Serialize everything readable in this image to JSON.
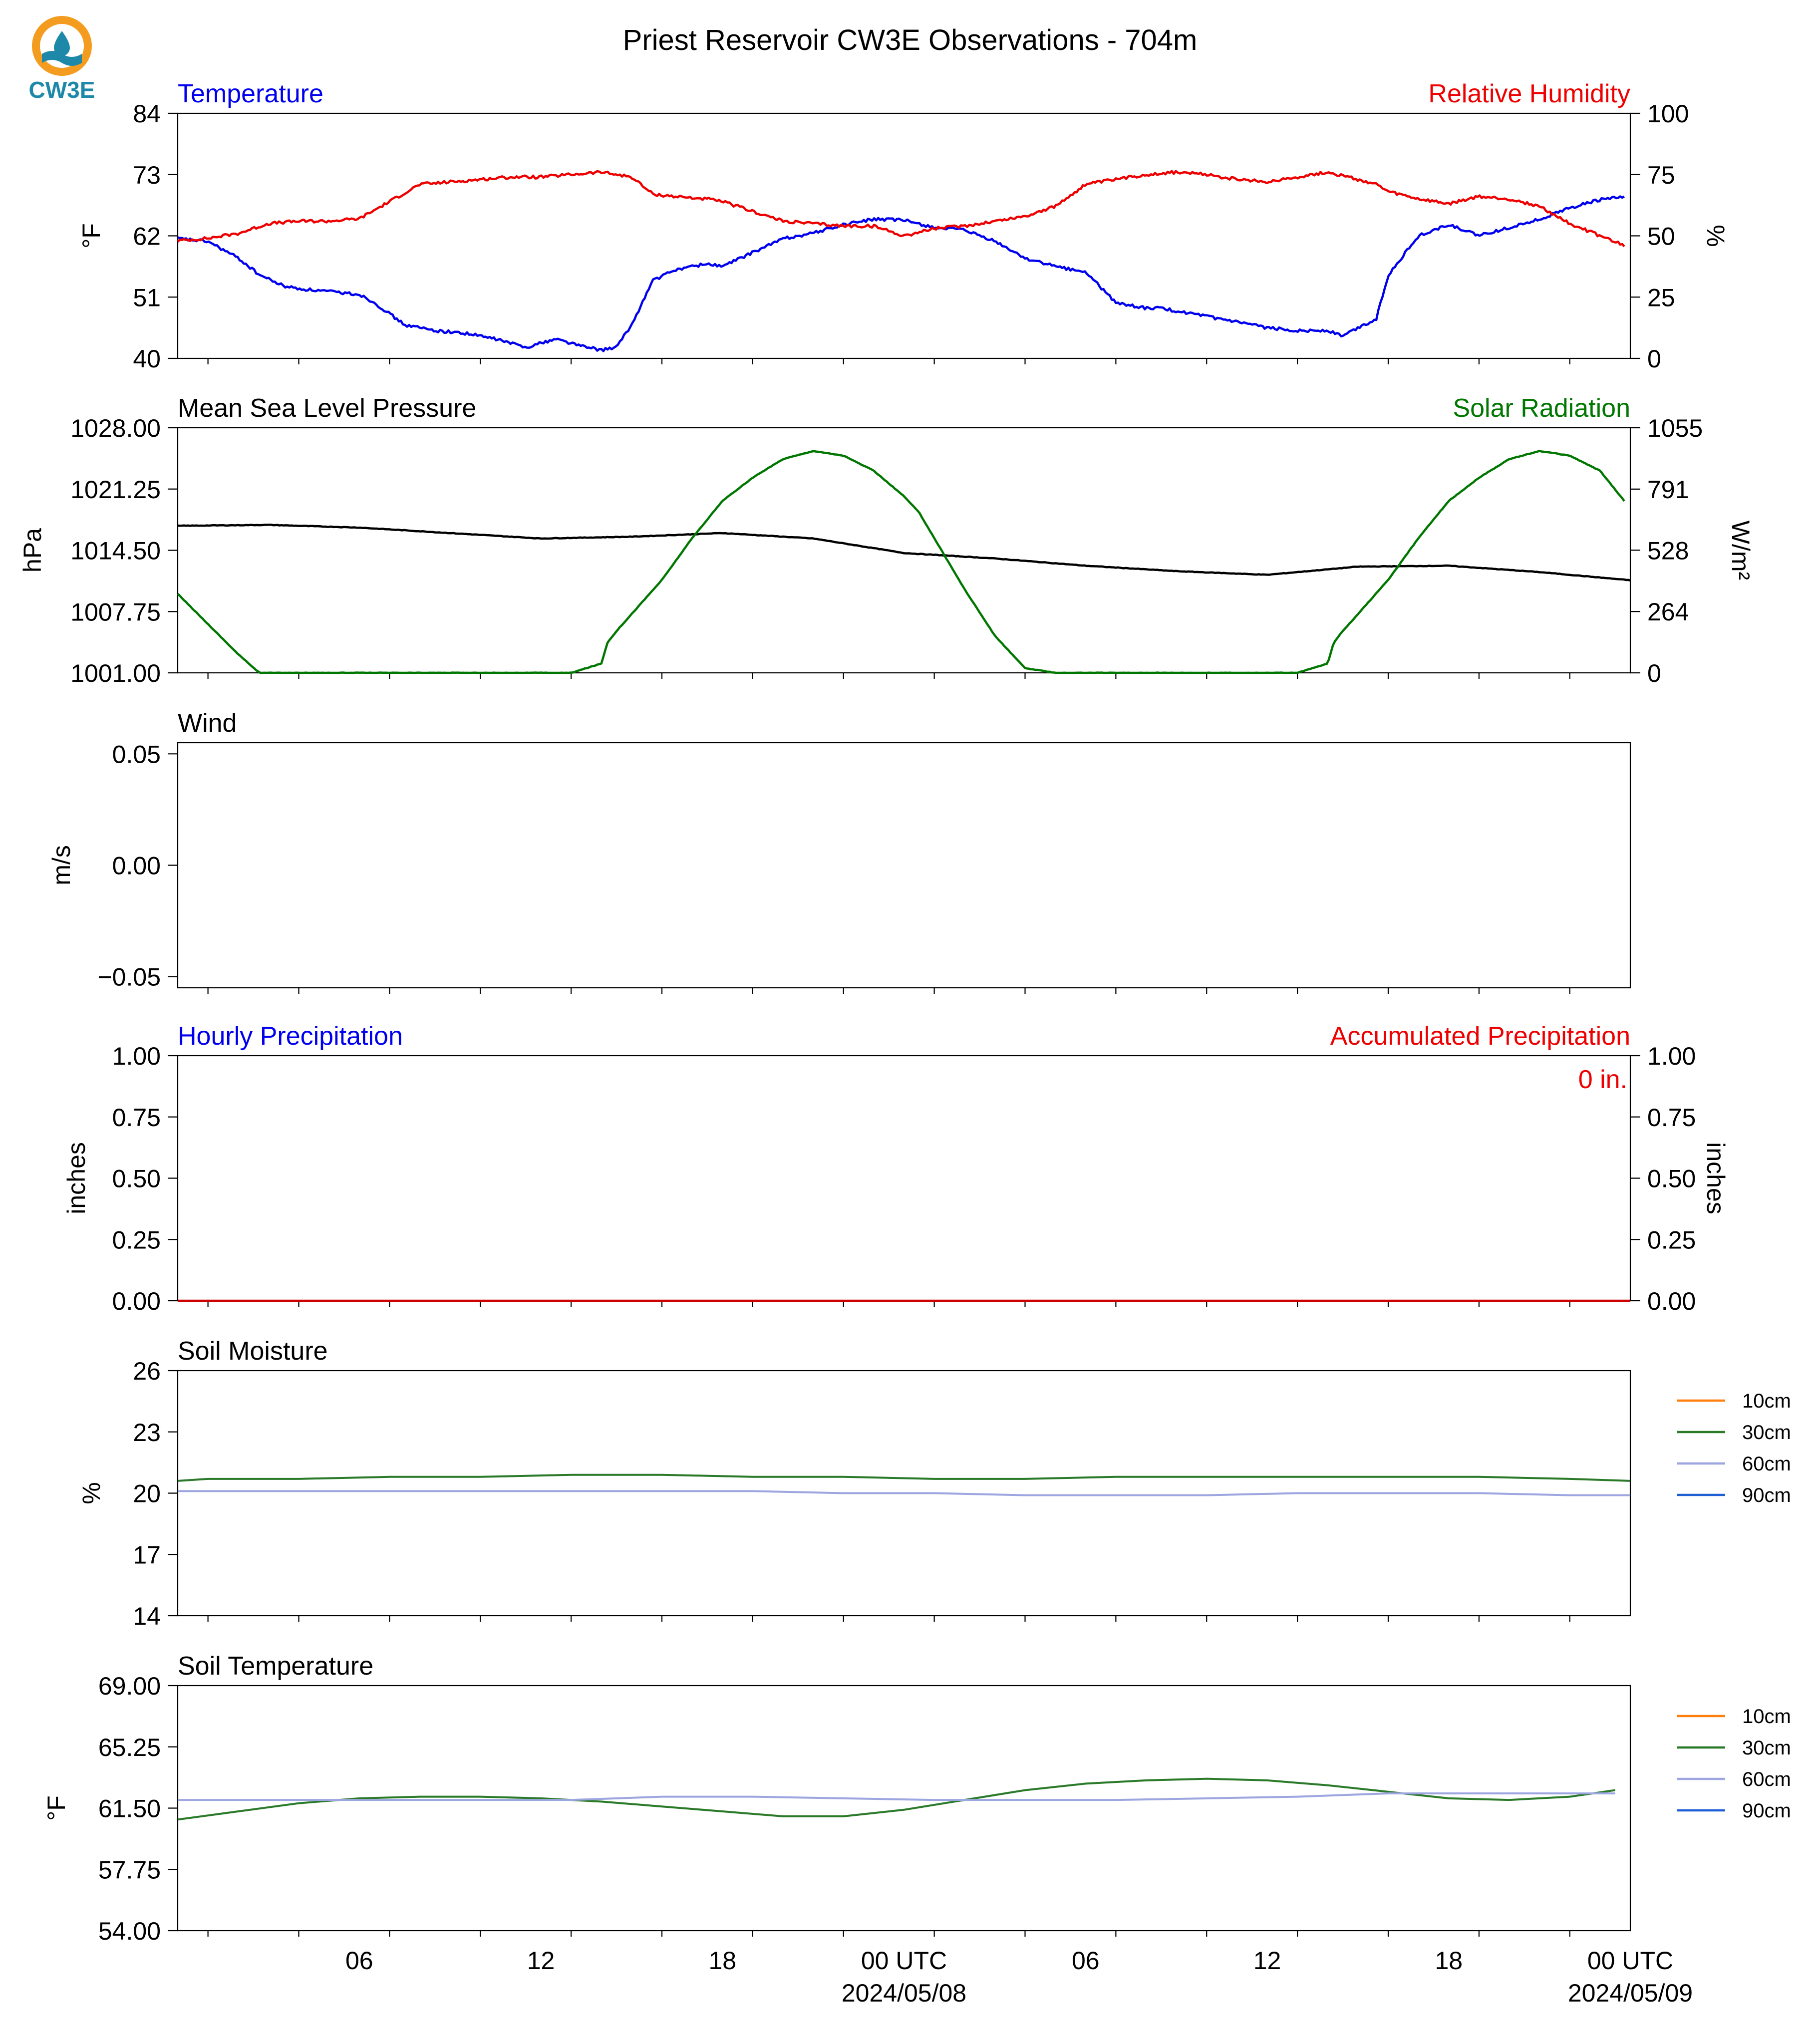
{
  "title": "Priest Reservoir CW3E Observations - 704m",
  "logo": {
    "text": "CW3E",
    "icon": "cw3e-logo-icon",
    "color_orange": "#f39c1f",
    "color_teal": "#1e88a8"
  },
  "time_axis": {
    "ticks": [
      "06",
      "12",
      "18",
      "00 UTC",
      "06",
      "12",
      "18",
      "00 UTC"
    ],
    "dates": [
      "2024/05/08",
      "2024/05/09"
    ],
    "range_hours": [
      -1,
      47
    ]
  },
  "chart_data": [
    {
      "type": "line",
      "title_left": "Temperature",
      "title_right": "Relative Humidity",
      "ylabel_left": "°F",
      "ylabel_right": "%",
      "ylim_left": [
        40,
        84
      ],
      "yticks_left": [
        "40",
        "51",
        "62",
        "73",
        "84"
      ],
      "ylim_right": [
        0,
        100
      ],
      "yticks_right": [
        "0",
        "25",
        "50",
        "75",
        "100"
      ],
      "series": [
        {
          "name": "Temperature",
          "axis": "left",
          "color": "#0000ee",
          "x": [
            -1,
            0,
            1,
            1.7,
            2.5,
            3,
            4,
            5,
            5.5,
            6,
            6.5,
            7.5,
            8.5,
            9.5,
            10.5,
            11.5,
            12.5,
            13,
            13.5,
            14,
            14.7,
            15.5,
            16.5,
            17,
            18,
            19,
            20,
            21,
            22,
            23,
            24,
            25,
            26,
            27,
            28,
            29,
            30,
            31,
            31.5,
            32,
            33,
            34,
            35,
            36,
            37,
            37.5,
            38,
            38.6,
            39,
            40,
            41,
            42,
            43,
            44,
            45,
            46,
            46.8
          ],
          "y": [
            61.5,
            61,
            58,
            55,
            53,
            52.5,
            52,
            51.5,
            50,
            48,
            46,
            45,
            44.5,
            43.5,
            42,
            43.5,
            42,
            41.5,
            42,
            46,
            54,
            56,
            57,
            56.5,
            59,
            61.5,
            62.5,
            64,
            65,
            64.8,
            63.5,
            63,
            61,
            58,
            56.5,
            55.5,
            50,
            49,
            49,
            48.5,
            47.5,
            46.5,
            45.5,
            45,
            45,
            44,
            45.5,
            47,
            55,
            62,
            64,
            62,
            63.5,
            65,
            67,
            68.5,
            69
          ]
        },
        {
          "name": "Relative Humidity",
          "axis": "right",
          "color": "#ee0000",
          "x": [
            -1,
            0,
            1,
            2,
            3,
            4,
            5,
            6,
            7,
            8,
            9,
            10,
            11,
            12,
            13,
            14,
            14.7,
            15.5,
            16.5,
            17,
            18,
            19,
            20,
            21,
            22,
            23,
            24,
            25,
            26,
            27,
            28,
            29,
            30,
            31,
            32,
            33,
            34,
            35,
            36,
            37,
            38,
            38.6,
            39,
            40,
            41,
            42,
            43,
            44,
            45,
            46,
            46.8
          ],
          "y": [
            48,
            49,
            51,
            55,
            56,
            56,
            57,
            64,
            71,
            72,
            73,
            74,
            74,
            75,
            76,
            74,
            67,
            66,
            65,
            64,
            60,
            56,
            55,
            54,
            54,
            50,
            53,
            54,
            56,
            58,
            62,
            71,
            73,
            75,
            76,
            75,
            73,
            72,
            74,
            76,
            73,
            71,
            68,
            65,
            63,
            66,
            65,
            62,
            55,
            50,
            46
          ]
        }
      ]
    },
    {
      "type": "line",
      "title_left": "Mean Sea Level Pressure",
      "title_right": "Solar Radiation",
      "ylabel_left": "hPa",
      "ylabel_right": "W/m²",
      "ylim_left": [
        1001,
        1028
      ],
      "yticks_left": [
        "1001.00",
        "1007.75",
        "1014.50",
        "1021.25",
        "1028.00"
      ],
      "ylim_right": [
        0,
        1055
      ],
      "yticks_right": [
        "0",
        "264",
        "528",
        "791",
        "1055"
      ],
      "series": [
        {
          "name": "Mean Sea Level Pressure",
          "axis": "left",
          "color": "#000000",
          "x": [
            -1,
            2,
            5,
            8,
            11,
            14,
            17,
            20,
            23,
            26,
            29,
            32,
            35,
            38,
            41,
            44,
            47
          ],
          "y": [
            1017.2,
            1017.3,
            1017.0,
            1016.4,
            1015.8,
            1016.0,
            1016.4,
            1015.8,
            1014.2,
            1013.6,
            1012.8,
            1012.2,
            1011.8,
            1012.7,
            1012.8,
            1012.1,
            1011.2
          ]
        },
        {
          "name": "Solar Radiation",
          "axis": "right",
          "color": "#007700",
          "x": [
            -1,
            0,
            1,
            1.7,
            12,
            13,
            13.2,
            13.5,
            15,
            16,
            17,
            18,
            19,
            20,
            21,
            22,
            23,
            23.5,
            24,
            25,
            26,
            27,
            28,
            29,
            36,
            37,
            37.2,
            37.5,
            39,
            40,
            41,
            42,
            43,
            44,
            45,
            46,
            46.8
          ],
          "y": [
            340,
            210,
            80,
            0,
            0,
            40,
            130,
            180,
            400,
            580,
            740,
            840,
            920,
            955,
            935,
            870,
            760,
            690,
            580,
            360,
            160,
            20,
            0,
            0,
            0,
            40,
            130,
            180,
            400,
            580,
            740,
            840,
            920,
            955,
            935,
            870,
            740
          ]
        }
      ]
    },
    {
      "type": "line",
      "title_left": "Wind",
      "ylabel_left": "m/s",
      "ylim_left": [
        -0.055,
        0.055
      ],
      "yticks_left": [
        "−0.05",
        "0.00",
        "0.05"
      ],
      "series": []
    },
    {
      "type": "line",
      "title_left": "Hourly Precipitation",
      "title_right": "Accumulated Precipitation",
      "ylabel_left": "inches",
      "ylabel_right": "inches",
      "ylim_left": [
        0,
        1
      ],
      "yticks_left": [
        "0.00",
        "0.25",
        "0.50",
        "0.75",
        "1.00"
      ],
      "ylim_right": [
        0,
        1
      ],
      "yticks_right": [
        "0.00",
        "0.25",
        "0.50",
        "0.75",
        "1.00"
      ],
      "annotation": "0 in.",
      "series": [
        {
          "name": "Accumulated Precipitation",
          "axis": "left",
          "color": "#cc0000",
          "x": [
            -1,
            47
          ],
          "y": [
            0,
            0
          ]
        }
      ]
    },
    {
      "type": "line",
      "title_left": "Soil Moisture",
      "ylabel_left": "%",
      "ylim_left": [
        14,
        26
      ],
      "yticks_left": [
        "14",
        "17",
        "20",
        "23",
        "26"
      ],
      "legend": "right",
      "legend_entries": [
        {
          "name": "10cm",
          "color": "#ff7f0e"
        },
        {
          "name": "30cm",
          "color": "#2a7a2a"
        },
        {
          "name": "60cm",
          "color": "#9da6e0"
        },
        {
          "name": "90cm",
          "color": "#1f5fd6"
        }
      ],
      "series": [
        {
          "name": "30cm",
          "axis": "left",
          "color": "#2a7a2a",
          "x": [
            -1,
            0,
            3,
            6,
            9,
            12,
            15,
            18,
            21,
            24,
            27,
            30,
            33,
            36,
            39,
            42,
            45,
            47
          ],
          "y": [
            20.6,
            20.7,
            20.7,
            20.8,
            20.8,
            20.9,
            20.9,
            20.8,
            20.8,
            20.7,
            20.7,
            20.8,
            20.8,
            20.8,
            20.8,
            20.8,
            20.7,
            20.6
          ]
        },
        {
          "name": "60cm",
          "axis": "left",
          "color": "#9da6e0",
          "x": [
            -1,
            3,
            6,
            9,
            12,
            15,
            18,
            21,
            24,
            27,
            30,
            33,
            36,
            39,
            42,
            45,
            47
          ],
          "y": [
            20.1,
            20.1,
            20.1,
            20.1,
            20.1,
            20.1,
            20.1,
            20.0,
            20.0,
            19.9,
            19.9,
            19.9,
            20.0,
            20.0,
            20.0,
            19.9,
            19.9
          ]
        }
      ]
    },
    {
      "type": "line",
      "title_left": "Soil Temperature",
      "ylabel_left": "°F",
      "ylim_left": [
        54,
        69
      ],
      "yticks_left": [
        "54.00",
        "57.75",
        "61.50",
        "65.25",
        "69.00"
      ],
      "legend": "right",
      "legend_entries": [
        {
          "name": "10cm",
          "color": "#ff7f0e"
        },
        {
          "name": "30cm",
          "color": "#2a7a2a"
        },
        {
          "name": "60cm",
          "color": "#9da6e0"
        },
        {
          "name": "90cm",
          "color": "#1f5fd6"
        }
      ],
      "series": [
        {
          "name": "30cm",
          "axis": "left",
          "color": "#2a7a2a",
          "x": [
            -1,
            1,
            3,
            5,
            7,
            9,
            11,
            13,
            15,
            17,
            19,
            21,
            23,
            25,
            27,
            29,
            31,
            33,
            35,
            37,
            39,
            41,
            43,
            45,
            46.5
          ],
          "y": [
            60.8,
            61.3,
            61.8,
            62.1,
            62.2,
            62.2,
            62.1,
            61.9,
            61.6,
            61.3,
            61.0,
            61.0,
            61.4,
            62.0,
            62.6,
            63.0,
            63.2,
            63.3,
            63.2,
            62.9,
            62.5,
            62.1,
            62.0,
            62.2,
            62.6
          ]
        },
        {
          "name": "60cm",
          "axis": "left",
          "color": "#9da6e0",
          "x": [
            -1,
            3,
            6,
            9,
            12,
            15,
            18,
            21,
            24,
            27,
            30,
            33,
            36,
            39,
            42,
            45,
            46.5
          ],
          "y": [
            62.0,
            62.0,
            62.0,
            62.0,
            62.0,
            62.2,
            62.2,
            62.1,
            62.0,
            62.0,
            62.0,
            62.1,
            62.2,
            62.4,
            62.4,
            62.4,
            62.4
          ]
        }
      ]
    }
  ]
}
